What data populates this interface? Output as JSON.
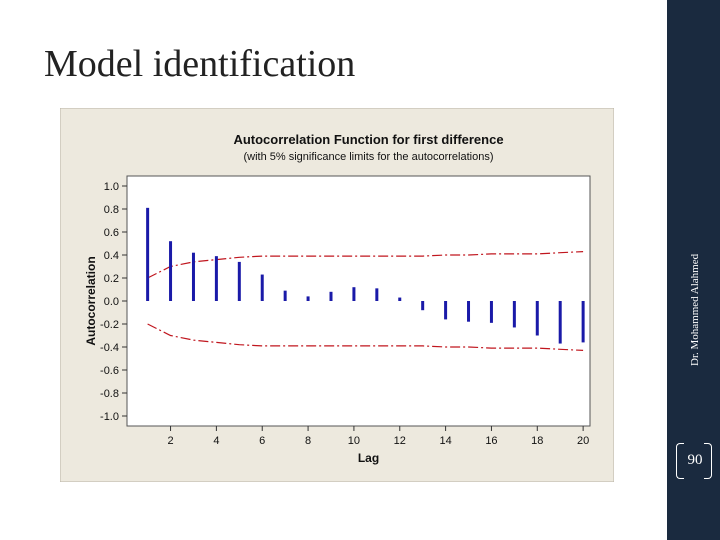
{
  "slide": {
    "title": "Model identification",
    "author": "Dr. Mohammed Alahmed",
    "page_number": "90"
  },
  "chart_data": {
    "type": "bar",
    "title": "Autocorrelation Function for first difference",
    "subtitle": "(with 5% significance limits for the autocorrelations)",
    "xlabel": "Lag",
    "ylabel": "Autocorrelation",
    "xlim": [
      1,
      20
    ],
    "ylim": [
      -1.0,
      1.0
    ],
    "x_ticks": [
      2,
      4,
      6,
      8,
      10,
      12,
      14,
      16,
      18,
      20
    ],
    "y_ticks": [
      "1.0",
      "0.8",
      "0.6",
      "0.4",
      "0.2",
      "0.0",
      "-0.2",
      "-0.4",
      "-0.6",
      "-0.8",
      "-1.0"
    ],
    "lags": [
      1,
      2,
      3,
      4,
      5,
      6,
      7,
      8,
      9,
      10,
      11,
      12,
      13,
      14,
      15,
      16,
      17,
      18,
      19,
      20
    ],
    "values": [
      0.81,
      0.52,
      0.42,
      0.39,
      0.34,
      0.23,
      0.09,
      0.04,
      0.08,
      0.12,
      0.11,
      0.03,
      -0.08,
      -0.16,
      -0.18,
      -0.19,
      -0.23,
      -0.3,
      -0.37,
      -0.36
    ],
    "significance_upper": [
      0.2,
      0.3,
      0.34,
      0.36,
      0.38,
      0.39,
      0.39,
      0.39,
      0.39,
      0.39,
      0.39,
      0.39,
      0.39,
      0.4,
      0.4,
      0.41,
      0.41,
      0.41,
      0.42,
      0.43
    ],
    "significance_lower": [
      -0.2,
      -0.3,
      -0.34,
      -0.36,
      -0.38,
      -0.39,
      -0.39,
      -0.39,
      -0.39,
      -0.39,
      -0.39,
      -0.39,
      -0.39,
      -0.4,
      -0.4,
      -0.41,
      -0.41,
      -0.41,
      -0.42,
      -0.43
    ],
    "colors": {
      "bars": "#1a1aa8",
      "limits": "#c0161e",
      "frame_bg": "#ede9de",
      "plot_bg": "#ffffff"
    },
    "grid": false
  }
}
